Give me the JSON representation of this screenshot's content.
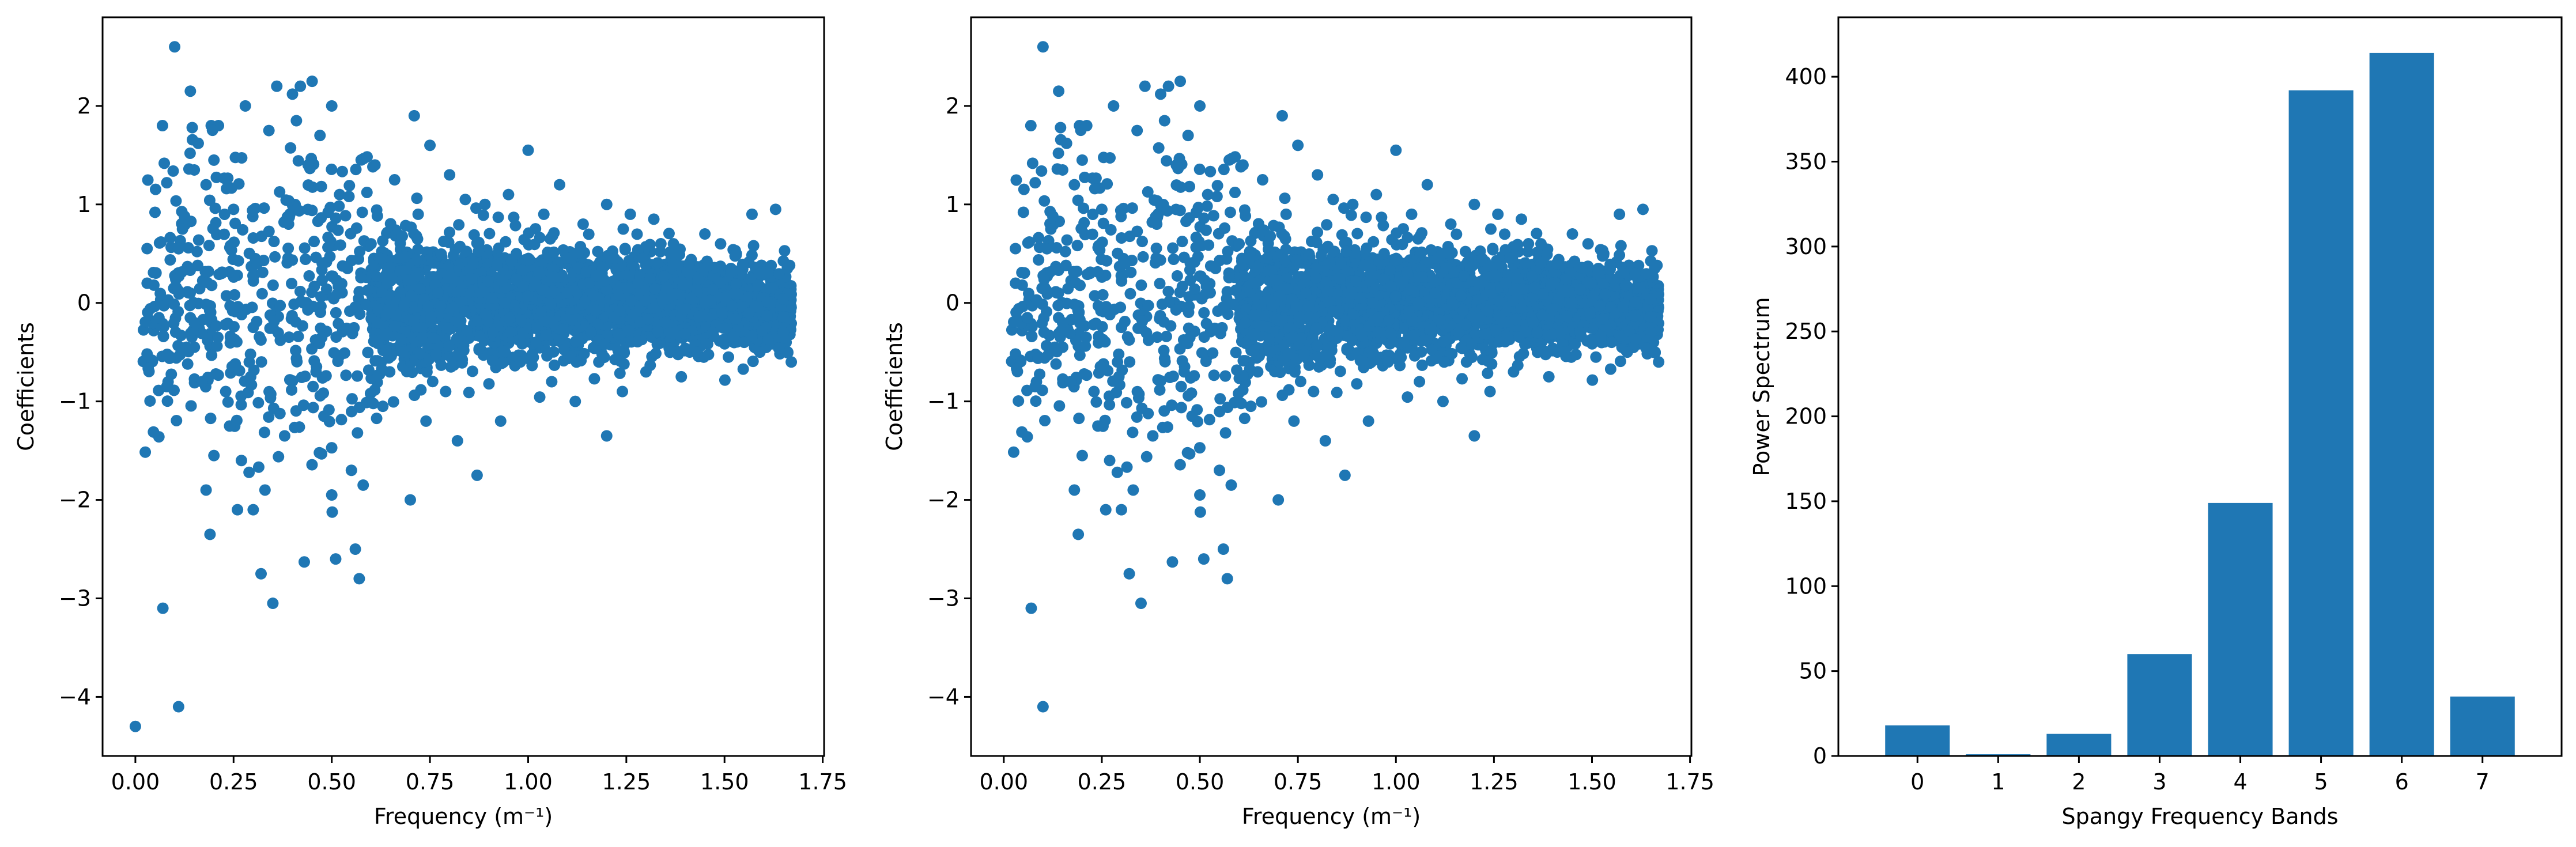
{
  "colors": {
    "series": "#1f77b4",
    "axis": "#000000",
    "background": "#ffffff"
  },
  "chart_data": [
    {
      "type": "scatter",
      "title": "",
      "xlabel": "Frequency (m⁻¹)",
      "ylabel": "Coefficients",
      "xlim": [
        -0.0835,
        1.7535
      ],
      "ylim": [
        -4.6,
        2.9
      ],
      "xticks": [
        0.0,
        0.25,
        0.5,
        0.75,
        1.0,
        1.25,
        1.5,
        1.75
      ],
      "xtick_labels": [
        "0.00",
        "0.25",
        "0.50",
        "0.75",
        "1.00",
        "1.25",
        "1.50",
        "1.75"
      ],
      "yticks": [
        -4,
        -3,
        -2,
        -1,
        0,
        1,
        2
      ],
      "ytick_labels": [
        "−4",
        "−3",
        "−2",
        "−1",
        "0",
        "1",
        "2"
      ],
      "grid": false,
      "points": [
        [
          0.0,
          -4.3
        ],
        [
          0.03,
          0.2
        ],
        [
          0.05,
          0.92
        ],
        [
          0.06,
          -0.15
        ],
        [
          0.07,
          -3.1
        ],
        [
          0.08,
          1.22
        ],
        [
          0.08,
          -0.85
        ],
        [
          0.1,
          2.6
        ],
        [
          0.11,
          -4.1
        ],
        [
          0.11,
          0.55
        ],
        [
          0.12,
          0.75
        ],
        [
          0.13,
          -0.45
        ],
        [
          0.14,
          2.15
        ],
        [
          0.15,
          1.35
        ],
        [
          0.15,
          -0.2
        ],
        [
          0.16,
          1.62
        ],
        [
          0.17,
          -0.8
        ],
        [
          0.18,
          1.2
        ],
        [
          0.18,
          -1.9
        ],
        [
          0.19,
          -2.35
        ],
        [
          0.2,
          1.45
        ],
        [
          0.2,
          -1.55
        ],
        [
          0.21,
          -0.35
        ],
        [
          0.22,
          0.3
        ],
        [
          0.23,
          -0.9
        ],
        [
          0.24,
          -1.25
        ],
        [
          0.25,
          0.95
        ],
        [
          0.26,
          -2.1
        ],
        [
          0.27,
          -1.6
        ],
        [
          0.28,
          2.0
        ],
        [
          0.29,
          -0.6
        ],
        [
          0.3,
          -2.1
        ],
        [
          0.31,
          0.4
        ],
        [
          0.32,
          -2.75
        ],
        [
          0.33,
          -1.9
        ],
        [
          0.34,
          1.75
        ],
        [
          0.35,
          -3.05
        ],
        [
          0.36,
          2.2
        ],
        [
          0.38,
          -1.35
        ],
        [
          0.39,
          0.8
        ],
        [
          0.4,
          2.12
        ],
        [
          0.41,
          1.85
        ],
        [
          0.42,
          2.2
        ],
        [
          0.43,
          -2.63
        ],
        [
          0.44,
          1.4
        ],
        [
          0.45,
          2.25
        ],
        [
          0.46,
          -0.7
        ],
        [
          0.47,
          1.7
        ],
        [
          0.48,
          -1.15
        ],
        [
          0.5,
          2.0
        ],
        [
          0.5,
          -1.95
        ],
        [
          0.51,
          -2.6
        ],
        [
          0.52,
          1.1
        ],
        [
          0.54,
          0.35
        ],
        [
          0.55,
          -1.7
        ],
        [
          0.56,
          -2.5
        ],
        [
          0.57,
          -2.8
        ],
        [
          0.58,
          -1.85
        ],
        [
          0.6,
          0.6
        ],
        [
          0.61,
          1.4
        ],
        [
          0.63,
          -1.05
        ],
        [
          0.64,
          0.2
        ],
        [
          0.66,
          1.25
        ],
        [
          0.68,
          -0.5
        ],
        [
          0.7,
          -2.0
        ],
        [
          0.71,
          1.9
        ],
        [
          0.72,
          0.9
        ],
        [
          0.74,
          -1.2
        ],
        [
          0.75,
          1.6
        ],
        [
          0.77,
          0.1
        ],
        [
          0.79,
          -0.9
        ],
        [
          0.8,
          1.3
        ],
        [
          0.82,
          -1.4
        ],
        [
          0.84,
          1.05
        ],
        [
          0.86,
          0.4
        ],
        [
          0.87,
          -1.75
        ],
        [
          0.89,
          1.0
        ],
        [
          0.91,
          -0.3
        ],
        [
          0.93,
          -1.2
        ],
        [
          0.95,
          1.1
        ],
        [
          0.97,
          0.5
        ],
        [
          0.98,
          -0.6
        ],
        [
          1.0,
          1.55
        ],
        [
          1.02,
          -0.4
        ],
        [
          1.04,
          0.9
        ],
        [
          1.06,
          -0.8
        ],
        [
          1.08,
          1.2
        ],
        [
          1.1,
          0.1
        ],
        [
          1.12,
          -1.0
        ],
        [
          1.14,
          0.8
        ],
        [
          1.16,
          -0.3
        ],
        [
          1.18,
          -0.6
        ],
        [
          1.2,
          1.0
        ],
        [
          1.2,
          -1.35
        ],
        [
          1.22,
          0.45
        ],
        [
          1.24,
          -0.9
        ],
        [
          1.26,
          0.9
        ],
        [
          1.28,
          0.2
        ],
        [
          1.3,
          -0.7
        ],
        [
          1.32,
          0.85
        ],
        [
          1.35,
          -0.2
        ],
        [
          1.37,
          0.6
        ],
        [
          1.39,
          -0.75
        ],
        [
          1.41,
          0.4
        ],
        [
          1.43,
          -0.5
        ],
        [
          1.45,
          0.7
        ],
        [
          1.47,
          -0.3
        ],
        [
          1.49,
          0.6
        ],
        [
          1.51,
          -0.55
        ],
        [
          1.53,
          0.5
        ],
        [
          1.55,
          -0.4
        ],
        [
          1.57,
          0.9
        ],
        [
          1.59,
          -0.5
        ],
        [
          1.61,
          0.3
        ],
        [
          1.63,
          0.95
        ],
        [
          1.65,
          -0.3
        ],
        [
          1.66,
          0.35
        ],
        [
          1.67,
          -0.6
        ]
      ],
      "density_note": "",
      "dense_cloud": {
        "x_range": [
          0.6,
          1.67
        ],
        "band_center": 0.0
      }
    },
    {
      "type": "scatter",
      "title": "",
      "xlabel": "Frequency (m⁻¹)",
      "ylabel": "Coefficients",
      "xlim": [
        -0.0835,
        1.7535
      ],
      "ylim": [
        -4.6,
        2.9
      ],
      "xticks": [
        0.0,
        0.25,
        0.5,
        0.75,
        1.0,
        1.25,
        1.5,
        1.75
      ],
      "xtick_labels": [
        "0.00",
        "0.25",
        "0.50",
        "0.75",
        "1.00",
        "1.25",
        "1.50",
        "1.75"
      ],
      "yticks": [
        -4,
        -3,
        -2,
        -1,
        0,
        1,
        2
      ],
      "ytick_labels": [
        "−4",
        "−3",
        "−2",
        "−1",
        "0",
        "1",
        "2"
      ],
      "grid": false,
      "points": [
        [
          0.03,
          0.2
        ],
        [
          0.05,
          0.92
        ],
        [
          0.06,
          -0.15
        ],
        [
          0.07,
          -3.1
        ],
        [
          0.08,
          1.22
        ],
        [
          0.08,
          -0.85
        ],
        [
          0.1,
          2.6
        ],
        [
          0.1,
          -4.1
        ],
        [
          0.11,
          0.55
        ],
        [
          0.12,
          0.75
        ],
        [
          0.13,
          -0.45
        ],
        [
          0.14,
          2.15
        ],
        [
          0.15,
          1.35
        ],
        [
          0.15,
          -0.2
        ],
        [
          0.16,
          1.62
        ],
        [
          0.17,
          -0.8
        ],
        [
          0.18,
          1.2
        ],
        [
          0.18,
          -1.9
        ],
        [
          0.19,
          -2.35
        ],
        [
          0.2,
          1.45
        ],
        [
          0.2,
          -1.55
        ],
        [
          0.21,
          -0.35
        ],
        [
          0.22,
          0.3
        ],
        [
          0.23,
          -0.9
        ],
        [
          0.24,
          -1.25
        ],
        [
          0.25,
          0.95
        ],
        [
          0.26,
          -2.1
        ],
        [
          0.27,
          -1.6
        ],
        [
          0.28,
          2.0
        ],
        [
          0.29,
          -0.6
        ],
        [
          0.3,
          -2.1
        ],
        [
          0.31,
          0.4
        ],
        [
          0.32,
          -2.75
        ],
        [
          0.33,
          -1.9
        ],
        [
          0.34,
          1.75
        ],
        [
          0.35,
          -3.05
        ],
        [
          0.36,
          2.2
        ],
        [
          0.38,
          -1.35
        ],
        [
          0.39,
          0.8
        ],
        [
          0.4,
          2.12
        ],
        [
          0.41,
          1.85
        ],
        [
          0.42,
          2.2
        ],
        [
          0.43,
          -2.63
        ],
        [
          0.44,
          1.4
        ],
        [
          0.45,
          2.25
        ],
        [
          0.46,
          -0.7
        ],
        [
          0.47,
          1.7
        ],
        [
          0.48,
          -1.15
        ],
        [
          0.5,
          2.0
        ],
        [
          0.5,
          -1.95
        ],
        [
          0.51,
          -2.6
        ],
        [
          0.52,
          1.1
        ],
        [
          0.54,
          0.35
        ],
        [
          0.55,
          -1.7
        ],
        [
          0.56,
          -2.5
        ],
        [
          0.57,
          -2.8
        ],
        [
          0.58,
          -1.85
        ],
        [
          0.6,
          0.6
        ],
        [
          0.61,
          1.4
        ],
        [
          0.63,
          -1.05
        ],
        [
          0.64,
          0.2
        ],
        [
          0.66,
          1.25
        ],
        [
          0.68,
          -0.5
        ],
        [
          0.7,
          -2.0
        ],
        [
          0.71,
          1.9
        ],
        [
          0.72,
          0.9
        ],
        [
          0.74,
          -1.2
        ],
        [
          0.75,
          1.6
        ],
        [
          0.77,
          0.1
        ],
        [
          0.79,
          -0.9
        ],
        [
          0.8,
          1.3
        ],
        [
          0.82,
          -1.4
        ],
        [
          0.84,
          1.05
        ],
        [
          0.86,
          0.4
        ],
        [
          0.87,
          -1.75
        ],
        [
          0.89,
          1.0
        ],
        [
          0.91,
          -0.3
        ],
        [
          0.93,
          -1.2
        ],
        [
          0.95,
          1.1
        ],
        [
          0.97,
          0.5
        ],
        [
          0.98,
          -0.6
        ],
        [
          1.0,
          1.55
        ],
        [
          1.02,
          -0.4
        ],
        [
          1.04,
          0.9
        ],
        [
          1.06,
          -0.8
        ],
        [
          1.08,
          1.2
        ],
        [
          1.1,
          0.1
        ],
        [
          1.12,
          -1.0
        ],
        [
          1.14,
          0.8
        ],
        [
          1.16,
          -0.3
        ],
        [
          1.18,
          -0.6
        ],
        [
          1.2,
          1.0
        ],
        [
          1.2,
          -1.35
        ],
        [
          1.22,
          0.45
        ],
        [
          1.24,
          -0.9
        ],
        [
          1.26,
          0.9
        ],
        [
          1.28,
          0.2
        ],
        [
          1.3,
          -0.7
        ],
        [
          1.32,
          0.85
        ],
        [
          1.35,
          -0.2
        ],
        [
          1.37,
          0.6
        ],
        [
          1.39,
          -0.75
        ],
        [
          1.41,
          0.4
        ],
        [
          1.43,
          -0.5
        ],
        [
          1.45,
          0.7
        ],
        [
          1.47,
          -0.3
        ],
        [
          1.49,
          0.6
        ],
        [
          1.51,
          -0.55
        ],
        [
          1.53,
          0.5
        ],
        [
          1.55,
          -0.4
        ],
        [
          1.57,
          0.9
        ],
        [
          1.59,
          -0.5
        ],
        [
          1.61,
          0.3
        ],
        [
          1.63,
          0.95
        ],
        [
          1.65,
          -0.3
        ],
        [
          1.66,
          0.35
        ],
        [
          1.67,
          -0.6
        ]
      ],
      "dense_cloud": {
        "x_range": [
          0.6,
          1.67
        ],
        "band_center": 0.0
      }
    },
    {
      "type": "bar",
      "title": "",
      "xlabel": "Spangy Frequency Bands",
      "ylabel": "Power Spectrum",
      "categories": [
        "0",
        "1",
        "2",
        "3",
        "4",
        "5",
        "6",
        "7"
      ],
      "values": [
        18,
        1,
        13,
        60,
        149,
        392,
        414,
        35
      ],
      "ylim": [
        0,
        435
      ],
      "yticks": [
        0,
        50,
        100,
        150,
        200,
        250,
        300,
        350,
        400
      ],
      "ytick_labels": [
        "0",
        "50",
        "100",
        "150",
        "200",
        "250",
        "300",
        "350",
        "400"
      ],
      "grid": false
    }
  ]
}
